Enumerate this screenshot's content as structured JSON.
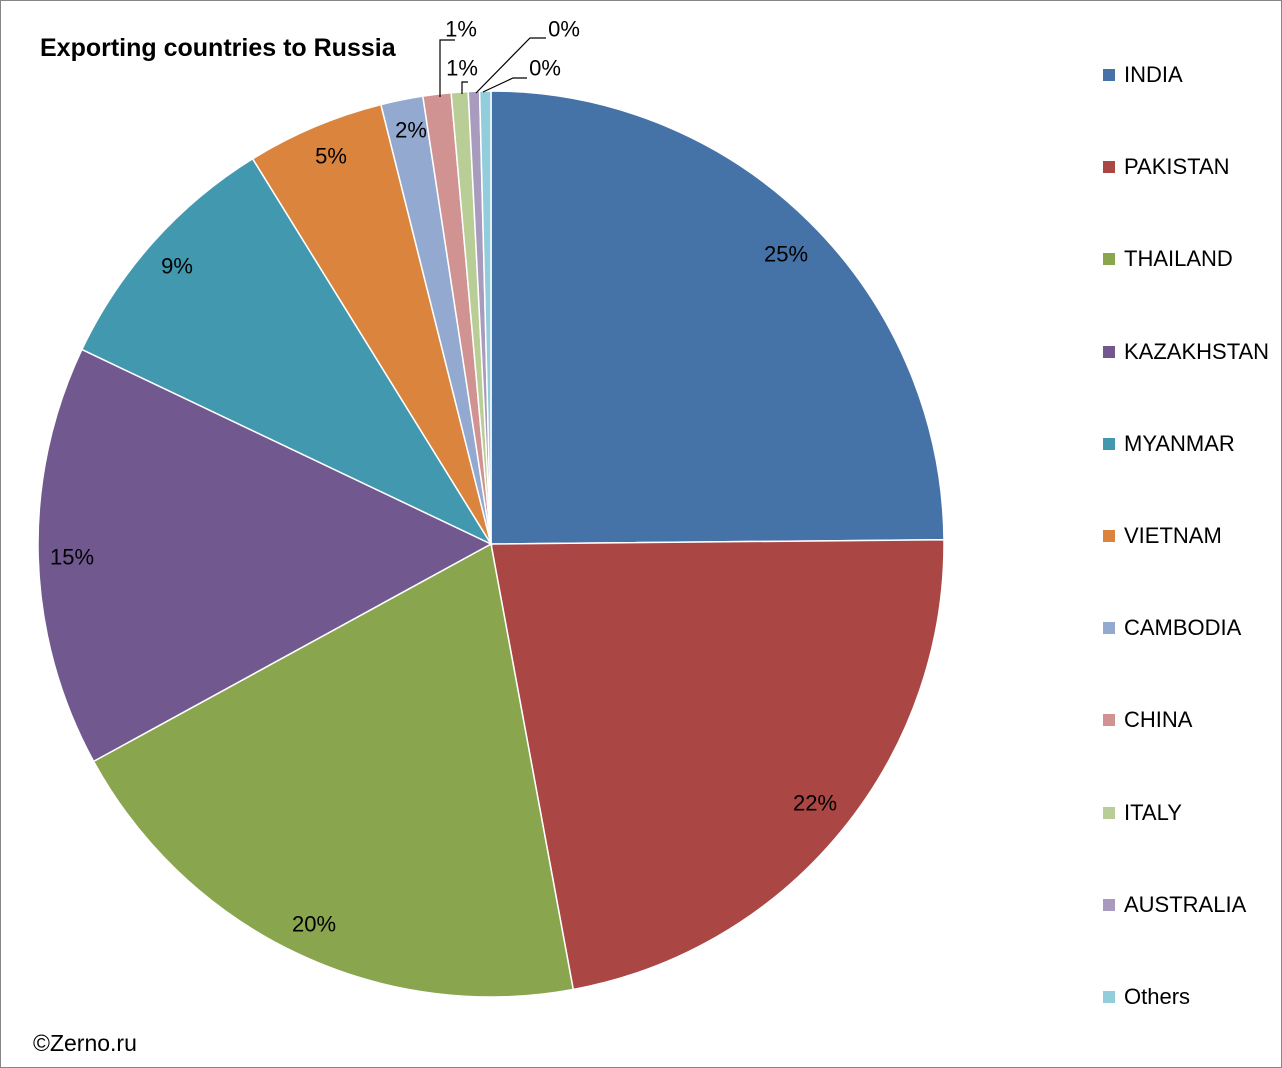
{
  "chart_title": "Exporting countries to Russia",
  "credit": "©Zerno.ru",
  "chart_data": {
    "type": "pie",
    "title": "Exporting countries to Russia",
    "legend_position": "right",
    "start_angle": "12 o'clock, clockwise",
    "slices": [
      {
        "name": "INDIA",
        "value": 24.8,
        "label": "25%",
        "color": "#4572A7"
      },
      {
        "name": "PAKISTAN",
        "value": 22.2,
        "label": "22%",
        "color": "#AA4643"
      },
      {
        "name": "THAILAND",
        "value": 19.9,
        "label": "20%",
        "color": "#89A54E"
      },
      {
        "name": "KAZAKHSTAN",
        "value": 15.0,
        "label": "15%",
        "color": "#71588F"
      },
      {
        "name": "MYANMAR",
        "value": 9.1,
        "label": "9%",
        "color": "#4198AF"
      },
      {
        "name": "VIETNAM",
        "value": 4.9,
        "label": "5%",
        "color": "#DB843D"
      },
      {
        "name": "CAMBODIA",
        "value": 1.5,
        "label": "2%",
        "color": "#93A9CF"
      },
      {
        "name": "CHINA",
        "value": 1.0,
        "label": "1%",
        "color": "#D19392"
      },
      {
        "name": "ITALY",
        "value": 0.6,
        "label": "1%",
        "color": "#B9CD96"
      },
      {
        "name": "AUSTRALIA",
        "value": 0.4,
        "label": "0%",
        "color": "#A99BBD"
      },
      {
        "name": "Others",
        "value": 0.4,
        "label": "0%",
        "color": "#92CDDC"
      }
    ]
  }
}
